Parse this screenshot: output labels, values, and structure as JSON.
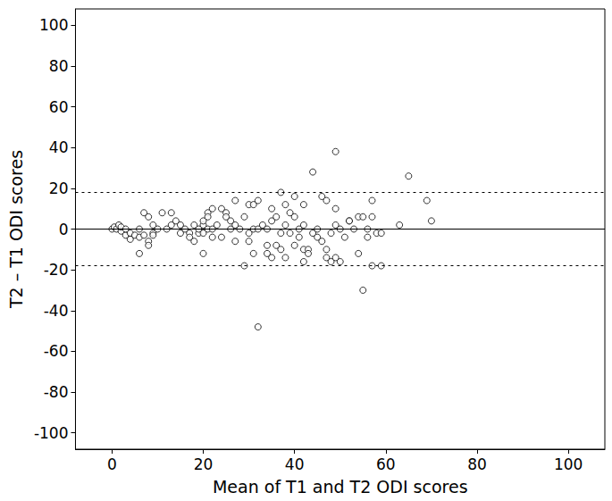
{
  "chart_data": {
    "type": "scatter",
    "x_label": "Mean of T1 and T2 ODI scores",
    "y_label": "T2 – T1 ODI scores",
    "xlim": [
      -8,
      108
    ],
    "ylim": [
      -108,
      108
    ],
    "xticks": [
      0,
      20,
      40,
      60,
      80,
      100
    ],
    "yticks": [
      -100,
      -80,
      -60,
      -40,
      -20,
      0,
      20,
      40,
      60,
      80,
      100
    ],
    "grid": false,
    "color": "#000000",
    "marker": "circle_open",
    "reference_lines": [
      {
        "value": 0,
        "line_style": "solid"
      },
      {
        "value": 18,
        "line_style": "dashed"
      },
      {
        "value": -18,
        "line_style": "dashed"
      }
    ],
    "x": [
      0,
      0.5,
      1,
      1.5,
      2,
      2,
      3,
      3,
      4,
      4,
      5,
      6,
      6,
      6,
      7,
      7,
      8,
      8,
      8,
      9,
      9,
      9,
      10,
      11,
      12,
      13,
      13,
      14,
      15,
      15,
      16,
      17,
      17,
      18,
      18,
      19,
      19,
      20,
      20,
      20,
      20,
      21,
      21,
      21,
      22,
      22,
      22,
      23,
      24,
      24,
      25,
      25,
      26,
      26,
      27,
      27,
      27,
      28,
      29,
      29,
      30,
      30,
      30,
      31,
      31,
      31,
      32,
      32,
      32,
      33,
      34,
      34,
      34,
      35,
      35,
      35,
      36,
      36,
      37,
      37,
      37,
      38,
      38,
      38,
      39,
      39,
      40,
      40,
      40,
      41,
      41,
      42,
      42,
      42,
      42,
      43,
      43,
      44,
      44,
      45,
      45,
      46,
      46,
      47,
      47,
      47,
      48,
      48,
      49,
      49,
      49,
      49,
      50,
      50,
      51,
      52,
      52,
      53,
      54,
      54,
      55,
      55,
      56,
      56,
      57,
      57,
      57,
      58,
      59,
      59,
      63,
      65,
      69,
      70
    ],
    "values": [
      0,
      1,
      0,
      2,
      -1,
      1,
      -3,
      0,
      -2,
      -5,
      -3,
      -12,
      -4,
      0,
      8,
      -3,
      -6,
      6,
      -8,
      -2,
      -3,
      2,
      0,
      8,
      0,
      8,
      2,
      4,
      -2,
      2,
      0,
      -2,
      -4,
      -6,
      2,
      -2,
      0,
      2,
      4,
      -2,
      -12,
      0,
      8,
      6,
      10,
      -4,
      0,
      2,
      10,
      -4,
      8,
      6,
      4,
      0,
      14,
      -6,
      2,
      0,
      -18,
      6,
      -2,
      -6,
      12,
      12,
      0,
      -12,
      14,
      0,
      -48,
      2,
      -8,
      0,
      -12,
      10,
      4,
      -14,
      -8,
      6,
      18,
      -10,
      -2,
      12,
      2,
      -14,
      8,
      -2,
      6,
      16,
      -8,
      -4,
      0,
      12,
      2,
      -10,
      -16,
      -10,
      -12,
      28,
      -2,
      -4,
      0,
      16,
      -6,
      14,
      -10,
      -14,
      -2,
      -16,
      38,
      10,
      2,
      -14,
      -16,
      0,
      -4,
      4,
      4,
      0,
      -12,
      6,
      -30,
      6,
      -4,
      0,
      14,
      6,
      -18,
      -2,
      -18,
      -2,
      2,
      26,
      14,
      4
    ]
  }
}
